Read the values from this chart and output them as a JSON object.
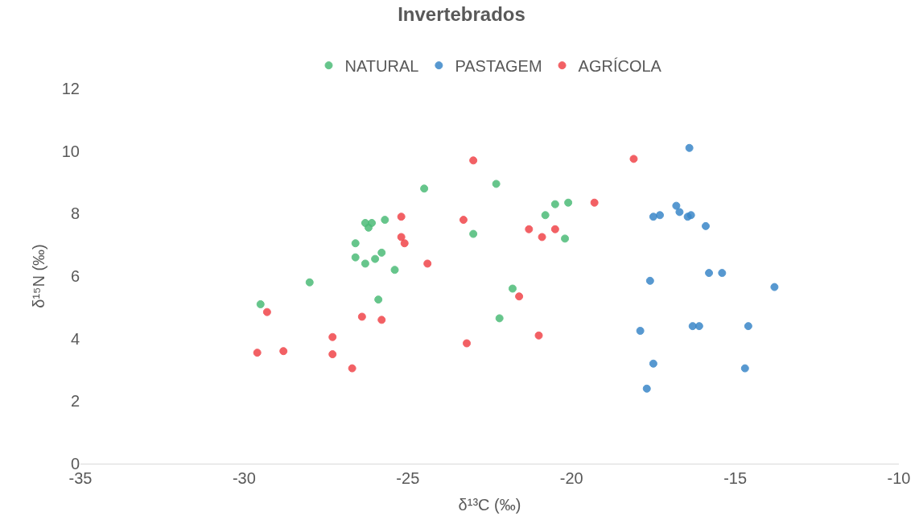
{
  "chart_data": {
    "type": "scatter",
    "title": "Invertebrados",
    "xlabel": "δ¹³C (‰)",
    "ylabel": "δ¹⁵N (‰)",
    "xlim": [
      -35,
      -10
    ],
    "xticks": [
      -35,
      -30,
      -25,
      -20,
      -15,
      -10
    ],
    "ylim": [
      0,
      12
    ],
    "yticks": [
      0,
      2,
      4,
      6,
      8,
      10,
      12
    ],
    "grid": false,
    "legend": "top",
    "marker": "circle",
    "series": [
      {
        "name": "NATURAL",
        "color": "#4cbb77",
        "x": [
          -29.5,
          -28.0,
          -26.6,
          -26.6,
          -26.3,
          -26.1,
          -26.2,
          -26.3,
          -26.0,
          -25.8,
          -25.7,
          -25.4,
          -25.9,
          -24.5,
          -23.0,
          -22.3,
          -21.8,
          -22.2,
          -20.8,
          -20.5,
          -20.1,
          -20.2
        ],
        "values": [
          5.1,
          5.8,
          7.05,
          6.6,
          7.7,
          7.7,
          7.55,
          6.4,
          6.55,
          6.75,
          7.8,
          6.2,
          5.25,
          8.8,
          7.35,
          8.95,
          5.6,
          4.65,
          7.95,
          8.3,
          8.35,
          7.2
        ]
      },
      {
        "name": "PASTAGEM",
        "color": "#3a87c8",
        "x": [
          -16.4,
          -16.8,
          -16.7,
          -17.3,
          -17.5,
          -16.35,
          -16.45,
          -15.9,
          -17.6,
          -15.8,
          -15.4,
          -13.8,
          -17.9,
          -16.3,
          -16.1,
          -14.6,
          -17.5,
          -17.7,
          -14.7
        ],
        "values": [
          10.1,
          8.25,
          8.05,
          7.95,
          7.9,
          7.95,
          7.9,
          7.6,
          5.85,
          6.1,
          6.1,
          5.65,
          4.25,
          4.4,
          4.4,
          4.4,
          3.2,
          2.4,
          3.05
        ]
      },
      {
        "name": "AGRÍCOLA",
        "color": "#f0454a",
        "x": [
          -29.6,
          -29.3,
          -28.8,
          -27.3,
          -27.3,
          -26.7,
          -26.4,
          -25.8,
          -25.2,
          -25.2,
          -25.1,
          -24.4,
          -23.3,
          -23.0,
          -23.2,
          -21.6,
          -21.3,
          -20.9,
          -20.5,
          -21.0,
          -19.3,
          -18.1
        ],
        "values": [
          3.55,
          4.85,
          3.6,
          4.05,
          3.5,
          3.05,
          4.7,
          4.6,
          7.9,
          7.25,
          7.05,
          6.4,
          7.8,
          9.7,
          3.85,
          5.35,
          7.5,
          7.25,
          7.5,
          4.1,
          8.35,
          9.75
        ]
      }
    ]
  }
}
